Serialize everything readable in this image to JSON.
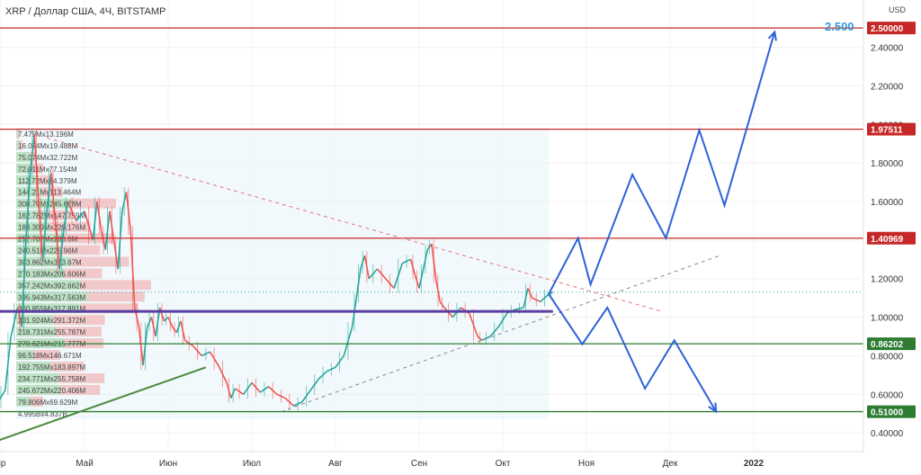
{
  "header": {
    "title": "XRP / Доллар США, 4Ч, BITSTAMP"
  },
  "chart_data": {
    "type": "candlestick",
    "symbol": "XRP / Доллар США",
    "timeframe": "4Ч",
    "exchange": "BITSTAMP",
    "currency_label": "USD",
    "ylim": [
      0.34,
      2.58
    ],
    "y_ticks": [
      "0.40000",
      "0.60000",
      "0.80000",
      "1.00000",
      "1.20000",
      "1.40000",
      "1.60000",
      "1.80000",
      "2.00000",
      "2.20000",
      "2.40000"
    ],
    "x_ticks": [
      {
        "label": "пр",
        "month": 0.0
      },
      {
        "label": "Май",
        "month": 1.0
      },
      {
        "label": "Июн",
        "month": 2.0
      },
      {
        "label": "Июл",
        "month": 3.0
      },
      {
        "label": "Авг",
        "month": 4.0
      },
      {
        "label": "Сен",
        "month": 5.0
      },
      {
        "label": "Окт",
        "month": 6.0
      },
      {
        "label": "Ноя",
        "month": 7.0
      },
      {
        "label": "Дек",
        "month": 8.0
      },
      {
        "label": "2022",
        "month": 9.0,
        "bold": true
      }
    ],
    "price_series": [
      [
        -0.05,
        0.55
      ],
      [
        0.05,
        0.62
      ],
      [
        0.12,
        0.9
      ],
      [
        0.2,
        1.05
      ],
      [
        0.25,
        0.95
      ],
      [
        0.3,
        1.4
      ],
      [
        0.35,
        1.75
      ],
      [
        0.4,
        1.95
      ],
      [
        0.45,
        1.6
      ],
      [
        0.5,
        1.3
      ],
      [
        0.55,
        1.55
      ],
      [
        0.6,
        1.75
      ],
      [
        0.65,
        1.5
      ],
      [
        0.7,
        1.25
      ],
      [
        0.75,
        1.45
      ],
      [
        0.8,
        1.6
      ],
      [
        0.9,
        1.5
      ],
      [
        1.0,
        1.55
      ],
      [
        1.1,
        1.4
      ],
      [
        1.15,
        1.6
      ],
      [
        1.2,
        1.45
      ],
      [
        1.25,
        1.35
      ],
      [
        1.3,
        1.55
      ],
      [
        1.35,
        1.4
      ],
      [
        1.4,
        1.25
      ],
      [
        1.45,
        1.55
      ],
      [
        1.5,
        1.65
      ],
      [
        1.55,
        1.45
      ],
      [
        1.6,
        1.05
      ],
      [
        1.65,
        0.95
      ],
      [
        1.7,
        0.75
      ],
      [
        1.75,
        0.95
      ],
      [
        1.8,
        1.0
      ],
      [
        1.85,
        0.9
      ],
      [
        1.9,
        1.05
      ],
      [
        1.95,
        0.98
      ],
      [
        2.0,
        1.0
      ],
      [
        2.05,
        0.95
      ],
      [
        2.1,
        0.92
      ],
      [
        2.15,
        0.98
      ],
      [
        2.2,
        0.88
      ],
      [
        2.3,
        0.85
      ],
      [
        2.4,
        0.8
      ],
      [
        2.5,
        0.82
      ],
      [
        2.6,
        0.75
      ],
      [
        2.7,
        0.66
      ],
      [
        2.75,
        0.58
      ],
      [
        2.8,
        0.63
      ],
      [
        2.9,
        0.6
      ],
      [
        3.0,
        0.66
      ],
      [
        3.1,
        0.61
      ],
      [
        3.2,
        0.64
      ],
      [
        3.3,
        0.6
      ],
      [
        3.4,
        0.58
      ],
      [
        3.5,
        0.54
      ],
      [
        3.6,
        0.56
      ],
      [
        3.7,
        0.62
      ],
      [
        3.8,
        0.68
      ],
      [
        3.9,
        0.72
      ],
      [
        4.0,
        0.74
      ],
      [
        4.1,
        0.8
      ],
      [
        4.2,
        0.95
      ],
      [
        4.25,
        1.1
      ],
      [
        4.3,
        1.25
      ],
      [
        4.35,
        1.32
      ],
      [
        4.4,
        1.2
      ],
      [
        4.5,
        1.25
      ],
      [
        4.6,
        1.2
      ],
      [
        4.7,
        1.15
      ],
      [
        4.8,
        1.28
      ],
      [
        4.9,
        1.3
      ],
      [
        4.95,
        1.22
      ],
      [
        5.0,
        1.15
      ],
      [
        5.05,
        1.25
      ],
      [
        5.1,
        1.35
      ],
      [
        5.15,
        1.38
      ],
      [
        5.2,
        1.2
      ],
      [
        5.25,
        1.08
      ],
      [
        5.3,
        1.05
      ],
      [
        5.4,
        1.0
      ],
      [
        5.5,
        1.05
      ],
      [
        5.6,
        1.02
      ],
      [
        5.7,
        0.9
      ],
      [
        5.75,
        0.88
      ],
      [
        5.85,
        0.9
      ],
      [
        5.95,
        0.95
      ],
      [
        6.05,
        1.02
      ],
      [
        6.15,
        1.04
      ],
      [
        6.25,
        1.05
      ],
      [
        6.3,
        1.15
      ],
      [
        6.35,
        1.1
      ],
      [
        6.45,
        1.08
      ],
      [
        6.55,
        1.12
      ],
      [
        6.6,
        1.13
      ]
    ],
    "horizontal_levels": [
      {
        "price": 2.5,
        "label": "2.50000",
        "color": "#c62828"
      },
      {
        "price": 1.97511,
        "label": "1.97511",
        "color": "#c62828"
      },
      {
        "price": 1.40969,
        "label": "1.40969",
        "color": "#c62828"
      },
      {
        "price": 0.86202,
        "label": "0.86202",
        "color": "#2e7d32"
      },
      {
        "price": 0.51,
        "label": "0.51000",
        "color": "#2e7d32"
      }
    ],
    "key_level": {
      "price": 1.03,
      "color": "#5b3fa0"
    },
    "current_price_line": 1.13,
    "target_label": "2.500",
    "trendlines": [
      {
        "style": "dashed",
        "color": "#e57373",
        "from": [
          0.55,
          1.93
        ],
        "to": [
          7.9,
          1.03
        ]
      },
      {
        "style": "dashed",
        "color": "#888888",
        "from": [
          3.35,
          0.51
        ],
        "to": [
          8.6,
          1.32
        ]
      },
      {
        "style": "solid",
        "color": "#4a8a3a",
        "from": [
          -0.1,
          0.35
        ],
        "to": [
          2.45,
          0.74
        ]
      }
    ],
    "forecast_up": [
      [
        6.55,
        1.12
      ],
      [
        6.9,
        1.41
      ],
      [
        7.05,
        1.17
      ],
      [
        7.55,
        1.74
      ],
      [
        7.95,
        1.41
      ],
      [
        8.35,
        1.97
      ],
      [
        8.65,
        1.58
      ],
      [
        9.25,
        2.48
      ]
    ],
    "forecast_down": [
      [
        6.55,
        1.12
      ],
      [
        6.95,
        0.86
      ],
      [
        7.25,
        1.05
      ],
      [
        7.7,
        0.63
      ],
      [
        8.05,
        0.88
      ],
      [
        8.55,
        0.51
      ]
    ],
    "forecast_color": "#2d62d9",
    "volume_profile": [
      {
        "label": "7.479Mx13.196M",
        "price": 1.93,
        "buy": 7.479,
        "sell": 13.196
      },
      {
        "label": "16.074Mx19.488M",
        "price": 1.85,
        "buy": 16.074,
        "sell": 19.488
      },
      {
        "label": "75.074Mx32.722M",
        "price": 1.77,
        "buy": 75.074,
        "sell": 32.722
      },
      {
        "label": "72.011Mx77.154M",
        "price": 1.69,
        "buy": 72.011,
        "sell": 77.154
      },
      {
        "label": "112.72Mx94.379M",
        "price": 1.61,
        "buy": 112.72,
        "sell": 94.379
      },
      {
        "label": "144.21Mx113.464M",
        "price": 1.53,
        "buy": 144.21,
        "sell": 113.464
      },
      {
        "label": "308.79Mx245.678M",
        "price": 1.45,
        "buy": 308.79,
        "sell": 245.678
      },
      {
        "label": "162.782Mx147.759M",
        "price": 1.37,
        "buy": 162.782,
        "sell": 147.759
      },
      {
        "label": "183.309Mx229.176M",
        "price": 1.29,
        "buy": 183.309,
        "sell": 229.176
      },
      {
        "label": "257.707Mx286.6M",
        "price": 1.21,
        "buy": 257.707,
        "sell": 286.6
      },
      {
        "label": "240.51Mx225.96M",
        "price": 1.13,
        "buy": 240.51,
        "sell": 225.96
      },
      {
        "label": "303.862Mx323.67M",
        "price": 1.05,
        "buy": 303.862,
        "sell": 323.67
      },
      {
        "label": "270.183Mx206.606M",
        "price": 0.97,
        "buy": 270.183,
        "sell": 206.606
      },
      {
        "label": "357.242Mx392.662M",
        "price": 0.89,
        "buy": 357.242,
        "sell": 392.662
      },
      {
        "label": "395.943Mx317.563M",
        "price": 0.81,
        "buy": 395.943,
        "sell": 317.563
      },
      {
        "label": "360.855Mx317.891M",
        "price": 0.73,
        "buy": 360.855,
        "sell": 317.891
      },
      {
        "label": "201.924Mx291.372M",
        "price": 0.65,
        "buy": 201.924,
        "sell": 291.372
      },
      {
        "label": "218.731Mx255.787M",
        "price": 0.57,
        "buy": 218.731,
        "sell": 255.787
      },
      {
        "label": "270.621Mx215.777M",
        "price": 0.49,
        "buy": 270.621,
        "sell": 215.777
      },
      {
        "label": "96.518Mx146.671M",
        "price": 0.41,
        "buy": 96.518,
        "sell": 146.671
      },
      {
        "label": "192.755Mx183.897M",
        "price": 0.33,
        "buy": 192.755,
        "sell": 183.897
      },
      {
        "label": "234.771Mx255.758M",
        "price": 0.25,
        "buy": 234.771,
        "sell": 255.758
      },
      {
        "label": "245.672Mx220.406M",
        "price": 0.17,
        "buy": 245.672,
        "sell": 220.406
      },
      {
        "label": "79.806Mx69.629M",
        "price": 0.09,
        "buy": 79.806,
        "sell": 69.629
      },
      {
        "label": "4.995Bx4.837B",
        "price": 0.01,
        "buy": 4995,
        "sell": 4837
      }
    ]
  }
}
